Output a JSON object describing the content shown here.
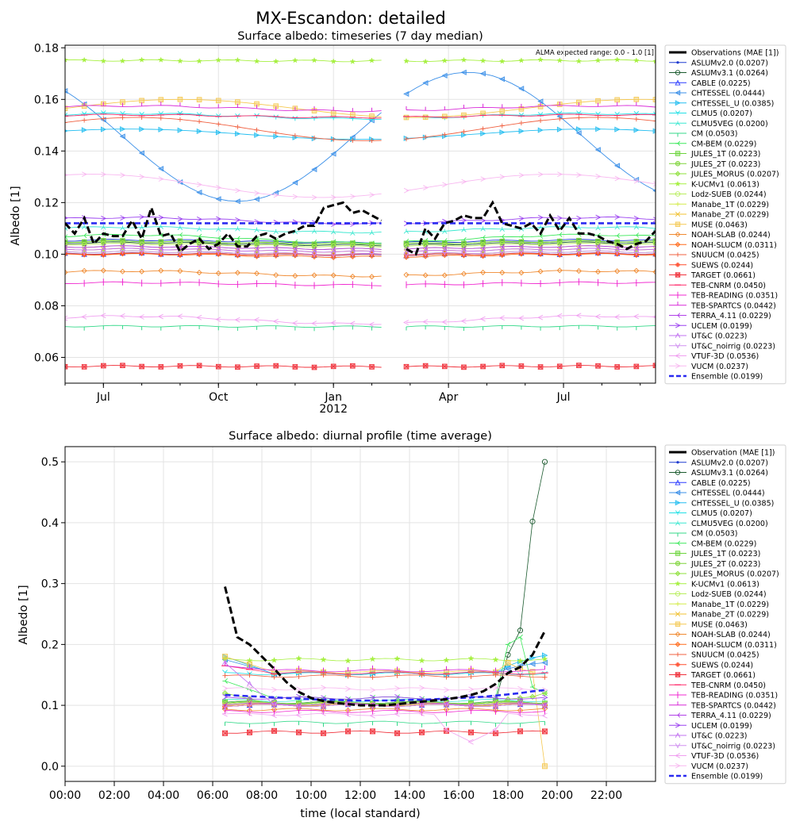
{
  "figure": {
    "title": "MX-Escandon: detailed"
  },
  "chart_data": [
    {
      "type": "line",
      "title": "Surface albedo: timeseries (7 day median)",
      "xlabel": "",
      "ylabel": "Albedo [1]",
      "annotation": "ALMA expected range: 0.0 - 1.0 [1]",
      "x_tick_labels": [
        "Jul",
        "Oct",
        "Jan\n2012",
        "Apr",
        "Jul"
      ],
      "x_tick_positions": [
        1.0,
        4.0,
        7.0,
        10.0,
        13.0
      ],
      "xlim": [
        0.0,
        15.4
      ],
      "gap": [
        8.3,
        8.9
      ],
      "y_ticks": [
        0.06,
        0.08,
        0.1,
        0.12,
        0.14,
        0.16,
        0.18
      ],
      "ylim": [
        0.05,
        0.181
      ],
      "grid": true,
      "legend_position": "right",
      "observation": {
        "name": "Observations (MAE [1])",
        "x": [
          0.0,
          0.25,
          0.5,
          0.75,
          1.0,
          1.25,
          1.5,
          1.75,
          2.0,
          2.25,
          2.5,
          2.75,
          3.0,
          3.25,
          3.5,
          3.75,
          4.0,
          4.25,
          4.5,
          4.75,
          5.0,
          5.25,
          5.5,
          5.75,
          6.0,
          6.25,
          6.5,
          6.75,
          7.0,
          7.25,
          7.5,
          7.75,
          8.0,
          8.25,
          8.9,
          9.15,
          9.4,
          9.65,
          9.9,
          10.15,
          10.4,
          10.65,
          10.9,
          11.15,
          11.4,
          11.65,
          11.9,
          12.15,
          12.4,
          12.65,
          12.9,
          13.15,
          13.4,
          13.65,
          13.9,
          14.15,
          14.4,
          14.65,
          14.9,
          15.15,
          15.4
        ],
        "y": [
          0.112,
          0.108,
          0.114,
          0.104,
          0.108,
          0.107,
          0.107,
          0.113,
          0.106,
          0.118,
          0.107,
          0.108,
          0.101,
          0.104,
          0.106,
          0.102,
          0.104,
          0.108,
          0.103,
          0.103,
          0.107,
          0.108,
          0.106,
          0.108,
          0.109,
          0.111,
          0.111,
          0.118,
          0.119,
          0.12,
          0.116,
          0.117,
          0.115,
          0.113,
          0.102,
          0.1,
          0.11,
          0.106,
          0.112,
          0.113,
          0.115,
          0.114,
          0.114,
          0.12,
          0.112,
          0.111,
          0.11,
          0.112,
          0.108,
          0.115,
          0.109,
          0.114,
          0.108,
          0.108,
          0.107,
          0.105,
          0.104,
          0.102,
          0.104,
          0.105,
          0.109
        ]
      },
      "ensemble": {
        "name": "Ensemble (0.0199)",
        "value": 0.112
      },
      "series": [
        {
          "name": "ASLUMv2.0 (0.0207)",
          "base": 0.105,
          "amp": 0.0005,
          "color": "#1f3bd0",
          "marker": "dot"
        },
        {
          "name": "ASLUMv3.1 (0.0264)",
          "base": 0.104,
          "amp": 0.0005,
          "color": "#1a5a2e",
          "marker": "circle"
        },
        {
          "name": "CABLE (0.0225)",
          "base": 0.1,
          "amp": 0.0003,
          "color": "#2b3bff",
          "marker": "triangle-up"
        },
        {
          "name": "CHTESSEL (0.0444)",
          "base": 0.1455,
          "amp": 0.025,
          "phase": 2.35,
          "color": "#3a8fe8",
          "marker": "triangle-left"
        },
        {
          "name": "CHTESSEL_U (0.0385)",
          "base": 0.1465,
          "amp": 0.002,
          "color": "#22bdf0",
          "marker": "triangle-right"
        },
        {
          "name": "CLMU5 (0.0207)",
          "base": 0.1535,
          "amp": 0.001,
          "color": "#22e0e6",
          "marker": "tri-down"
        },
        {
          "name": "CLMU5VEG (0.0200)",
          "base": 0.1095,
          "amp": 0.001,
          "color": "#3ae8d0",
          "marker": "tri-up"
        },
        {
          "name": "CM (0.0503)",
          "base": 0.072,
          "amp": 0.0001,
          "color": "#35d98a",
          "marker": "tick-down"
        },
        {
          "name": "CM-BEM (0.0229)",
          "base": 0.106,
          "amp": 0.0015,
          "color": "#3be85a",
          "marker": "tri-left"
        },
        {
          "name": "JULES_1T (0.0223)",
          "base": 0.1045,
          "amp": 0.0005,
          "color": "#6cd43c",
          "marker": "square"
        },
        {
          "name": "JULES_2T (0.0223)",
          "base": 0.1045,
          "amp": 0.0005,
          "color": "#7fd43a",
          "marker": "hexagon"
        },
        {
          "name": "JULES_MORUS (0.0207)",
          "base": 0.1005,
          "amp": 0.0005,
          "color": "#8ee03a",
          "marker": "diamond"
        },
        {
          "name": "K-UCMv1 (0.0613)",
          "base": 0.175,
          "amp": 0.0001,
          "color": "#a6f040",
          "marker": "star"
        },
        {
          "name": "Lodz-SUEB (0.0244)",
          "base": 0.1035,
          "amp": 0.0005,
          "color": "#b8ee5c",
          "marker": "circle"
        },
        {
          "name": "Manabe_1T (0.0229)",
          "base": 0.1025,
          "amp": 0.0005,
          "color": "#d4ec4a",
          "marker": "plus"
        },
        {
          "name": "Manabe_2T (0.0229)",
          "base": 0.1015,
          "amp": 0.0005,
          "color": "#f0c030",
          "marker": "x"
        },
        {
          "name": "MUSE (0.0463)",
          "base": 0.1565,
          "amp": 0.0035,
          "phase": 0.0,
          "color": "#f5c850",
          "marker": "square"
        },
        {
          "name": "NOAH-SLAB (0.0244)",
          "base": 0.0925,
          "amp": 0.001,
          "color": "#f08a30",
          "marker": "diamond-open"
        },
        {
          "name": "NOAH-SLUCM (0.0311)",
          "base": 0.0995,
          "amp": 0.0005,
          "color": "#ff6a1a",
          "marker": "diamond"
        },
        {
          "name": "SNUUCM (0.0425)",
          "base": 0.1485,
          "amp": 0.0045,
          "phase": 0.6,
          "color": "#f06040",
          "marker": "plus"
        },
        {
          "name": "SUEWS (0.0244)",
          "base": 0.1,
          "amp": 0.0002,
          "color": "#ff4a2a",
          "marker": "plus-filled"
        },
        {
          "name": "TARGET (0.0661)",
          "base": 0.0565,
          "amp": 0.0001,
          "color": "#f0303a",
          "marker": "x-square"
        },
        {
          "name": "TEB-CNRM (0.0450)",
          "base": 0.1535,
          "amp": 0.0005,
          "color": "#ff2a6a",
          "marker": "hline"
        },
        {
          "name": "TEB-READING (0.0351)",
          "base": 0.0885,
          "amp": 0.0005,
          "color": "#f02ad0",
          "marker": "vline"
        },
        {
          "name": "TEB-SPARTCS (0.0442)",
          "base": 0.1565,
          "amp": 0.001,
          "color": "#d82ad8",
          "marker": "tick-up"
        },
        {
          "name": "TERRA_4.11 (0.0229)",
          "base": 0.1025,
          "amp": 0.0005,
          "color": "#b040e8",
          "marker": "tri-left"
        },
        {
          "name": "UCLEM (0.0199)",
          "base": 0.113,
          "amp": 0.0012,
          "color": "#9a40f0",
          "marker": "chevron-right"
        },
        {
          "name": "UT&C (0.0223)",
          "base": 0.1015,
          "amp": 0.0005,
          "color": "#c070f0",
          "marker": "chevron-up"
        },
        {
          "name": "UT&C_noirrig (0.0223)",
          "base": 0.1005,
          "amp": 0.0005,
          "color": "#d090f0",
          "marker": "chevron-down"
        },
        {
          "name": "VTUF-3D (0.0536)",
          "base": 0.0745,
          "amp": 0.0015,
          "color": "#f0a0f0",
          "marker": "chevron-left"
        },
        {
          "name": "VUCM (0.0237)",
          "base": 0.1265,
          "amp": 0.0045,
          "phase": 1.2,
          "color": "#f8b8f0",
          "marker": "chevron-right"
        }
      ]
    },
    {
      "type": "line",
      "title": "Surface albedo: diurnal profile (time average)",
      "xlabel": "time (local standard)",
      "ylabel": "Albedo [1]",
      "x_tick_labels": [
        "00:00",
        "02:00",
        "04:00",
        "06:00",
        "08:00",
        "10:00",
        "12:00",
        "14:00",
        "16:00",
        "18:00",
        "20:00",
        "22:00"
      ],
      "x_tick_positions": [
        0,
        2,
        4,
        6,
        8,
        10,
        12,
        14,
        16,
        18,
        20,
        22
      ],
      "xlim": [
        0,
        24
      ],
      "y_ticks": [
        0.0,
        0.1,
        0.2,
        0.3,
        0.4,
        0.5
      ],
      "ylim": [
        -0.025,
        0.525
      ],
      "grid": true,
      "legend_position": "right",
      "hours": [
        6.5,
        7.0,
        7.5,
        8.0,
        8.5,
        9.0,
        9.5,
        10.0,
        10.5,
        11.0,
        11.5,
        12.0,
        12.5,
        13.0,
        13.5,
        14.0,
        14.5,
        15.0,
        15.5,
        16.0,
        16.5,
        17.0,
        17.5,
        18.0,
        18.5,
        19.0,
        19.5
      ],
      "observation": {
        "name": "Observation (MAE [1])",
        "y": [
          0.295,
          0.212,
          0.2,
          0.18,
          0.16,
          0.138,
          0.122,
          0.112,
          0.107,
          0.104,
          0.102,
          0.1,
          0.1,
          0.1,
          0.102,
          0.104,
          0.106,
          0.108,
          0.11,
          0.113,
          0.117,
          0.123,
          0.135,
          0.153,
          0.163,
          0.183,
          0.222
        ]
      },
      "ensemble": {
        "name": "Ensemble (0.0199)",
        "y": [
          0.117,
          0.116,
          0.115,
          0.114,
          0.113,
          0.112,
          0.111,
          0.11,
          0.109,
          0.109,
          0.108,
          0.108,
          0.108,
          0.108,
          0.108,
          0.109,
          0.109,
          0.11,
          0.111,
          0.112,
          0.113,
          0.114,
          0.116,
          0.118,
          0.12,
          0.123,
          0.125
        ]
      },
      "series": [
        {
          "name": "ASLUMv2.0 (0.0207)",
          "flat": 0.105,
          "color": "#1f3bd0",
          "marker": "dot"
        },
        {
          "name": "ASLUMv3.1 (0.0264)",
          "flat": 0.104,
          "color": "#1a5a2e",
          "marker": "circle",
          "tail": [
            0.183,
            0.223,
            0.402,
            0.5
          ]
        },
        {
          "name": "CABLE (0.0225)",
          "flat": 0.1,
          "color": "#2b3bff",
          "marker": "triangle-up"
        },
        {
          "name": "CHTESSEL (0.0444)",
          "flat": 0.153,
          "color": "#3a8fe8",
          "marker": "triangle-left",
          "start": 0.175,
          "tail": [
            0.16,
            0.165,
            0.168,
            0.17
          ]
        },
        {
          "name": "CHTESSEL_U (0.0385)",
          "flat": 0.152,
          "color": "#22bdf0",
          "marker": "triangle-right",
          "start": 0.18,
          "tail": [
            0.165,
            0.172,
            0.178,
            0.182
          ]
        },
        {
          "name": "CLMU5 (0.0207)",
          "flat": 0.152,
          "color": "#22e0e6",
          "marker": "tri-down"
        },
        {
          "name": "CLMU5VEG (0.0200)",
          "flat": 0.108,
          "color": "#3ae8d0",
          "marker": "tri-up"
        },
        {
          "name": "CM (0.0503)",
          "flat": 0.072,
          "color": "#35d98a",
          "marker": "tick-down"
        },
        {
          "name": "CM-BEM (0.0229)",
          "flat": 0.112,
          "color": "#3be85a",
          "marker": "tri-left",
          "start": 0.14,
          "tail": [
            0.2,
            0.212,
            0.13,
            0.12
          ]
        },
        {
          "name": "JULES_1T (0.0223)",
          "flat": 0.105,
          "color": "#6cd43c",
          "marker": "square"
        },
        {
          "name": "JULES_2T (0.0223)",
          "flat": 0.104,
          "color": "#7fd43a",
          "marker": "hexagon"
        },
        {
          "name": "JULES_MORUS (0.0207)",
          "flat": 0.101,
          "color": "#8ee03a",
          "marker": "diamond",
          "start": 0.12,
          "tail": [
            0.11,
            0.112,
            0.114,
            0.12
          ]
        },
        {
          "name": "K-UCMv1 (0.0613)",
          "flat": 0.175,
          "color": "#a6f040",
          "marker": "star"
        },
        {
          "name": "Lodz-SUEB (0.0244)",
          "flat": 0.103,
          "color": "#b8ee5c",
          "marker": "circle"
        },
        {
          "name": "Manabe_1T (0.0229)",
          "flat": 0.102,
          "color": "#d4ec4a",
          "marker": "plus"
        },
        {
          "name": "Manabe_2T (0.0229)",
          "flat": 0.101,
          "color": "#f0c030",
          "marker": "x"
        },
        {
          "name": "MUSE (0.0463)",
          "flat": 0.155,
          "color": "#f5c850",
          "marker": "square",
          "start": 0.18,
          "tail": [
            0.17,
            0.16,
            0.155,
            0.0
          ]
        },
        {
          "name": "NOAH-SLAB (0.0244)",
          "flat": 0.093,
          "color": "#f08a30",
          "marker": "diamond-open"
        },
        {
          "name": "NOAH-SLUCM (0.0311)",
          "flat": 0.1,
          "color": "#ff6a1a",
          "marker": "diamond"
        },
        {
          "name": "SNUUCM (0.0425)",
          "flat": 0.148,
          "color": "#f06040",
          "marker": "plus"
        },
        {
          "name": "SUEWS (0.0244)",
          "flat": 0.1,
          "color": "#ff4a2a",
          "marker": "plus-filled"
        },
        {
          "name": "TARGET (0.0661)",
          "flat": 0.056,
          "color": "#f0303a",
          "marker": "x-square"
        },
        {
          "name": "TEB-CNRM (0.0450)",
          "flat": 0.153,
          "color": "#ff2a6a",
          "marker": "hline",
          "start": 0.165
        },
        {
          "name": "TEB-READING (0.0351)",
          "flat": 0.09,
          "color": "#f02ad0",
          "marker": "vline"
        },
        {
          "name": "TEB-SPARTCS (0.0442)",
          "flat": 0.157,
          "color": "#d82ad8",
          "marker": "tick-up",
          "start": 0.165
        },
        {
          "name": "TERRA_4.11 (0.0229)",
          "flat": 0.102,
          "color": "#b040e8",
          "marker": "tri-left"
        },
        {
          "name": "UCLEM (0.0199)",
          "flat": 0.112,
          "color": "#9a40f0",
          "marker": "chevron-right"
        },
        {
          "name": "UT&C (0.0223)",
          "flat": 0.1,
          "color": "#c070f0",
          "marker": "chevron-up",
          "start": 0.17
        },
        {
          "name": "UT&C_noirrig (0.0223)",
          "flat": 0.1,
          "color": "#d090f0",
          "marker": "chevron-down"
        },
        {
          "name": "VTUF-3D (0.0536)",
          "flat": 0.085,
          "color": "#f0a0f0",
          "marker": "chevron-left",
          "dip": 0.04
        },
        {
          "name": "VUCM (0.0237)",
          "flat": 0.127,
          "color": "#f8b8f0",
          "marker": "chevron-right"
        }
      ]
    }
  ]
}
